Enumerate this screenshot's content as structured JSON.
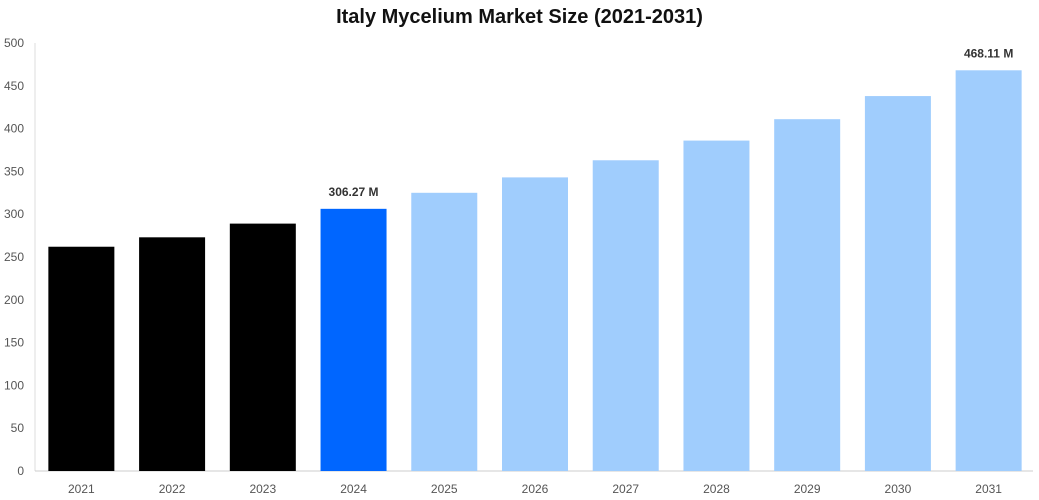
{
  "chart_data": {
    "type": "bar",
    "title": "Italy Mycelium Market Size (2021-2031)",
    "xlabel": "",
    "ylabel": "",
    "categories": [
      "2021",
      "2022",
      "2023",
      "2024",
      "2025",
      "2026",
      "2027",
      "2028",
      "2029",
      "2030",
      "2031"
    ],
    "values": [
      262,
      273,
      289,
      306.27,
      325,
      343,
      363,
      386,
      411,
      438,
      468.11
    ],
    "ylim": [
      0,
      500
    ],
    "yticks": [
      "0",
      "50",
      "100",
      "150",
      "200",
      "250",
      "300",
      "350",
      "400",
      "450",
      "500"
    ],
    "grid": false,
    "legend": "none",
    "bar_colors": [
      "#000000",
      "#000000",
      "#000000",
      "#0066ff",
      "#a0cdfd",
      "#a0cdfd",
      "#a0cdfd",
      "#a0cdfd",
      "#a0cdfd",
      "#a0cdfd",
      "#a0cdfd"
    ],
    "data_labels": [
      {
        "category": "2024",
        "text": "306.27 M"
      },
      {
        "category": "2031",
        "text": "468.11 M"
      }
    ]
  }
}
